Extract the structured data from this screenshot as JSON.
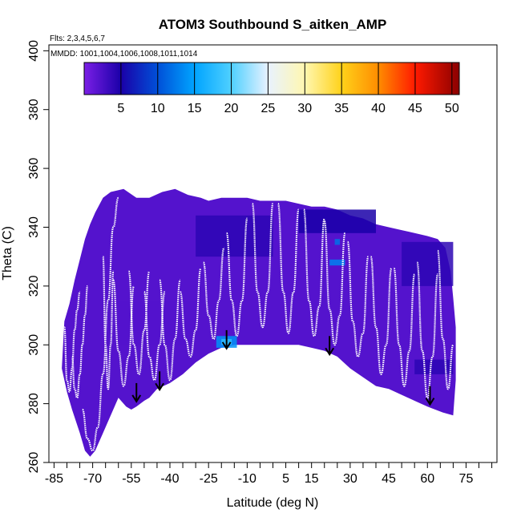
{
  "chart_data": {
    "type": "heatmap",
    "title": "ATOM3 Southbound S_aitken_AMP",
    "annotations": [
      "Flts: 2,3,4,5,6,7",
      "MMDD: 1001,1004,1006,1008,1011,1014"
    ],
    "xlabel": "Latitude (deg N)",
    "ylabel": "Theta (C)",
    "xlim": [
      -87,
      87
    ],
    "ylim": [
      260,
      402
    ],
    "x_ticks": [
      -85,
      -70,
      -55,
      -40,
      -25,
      -10,
      5,
      15,
      30,
      45,
      60,
      75
    ],
    "x_minor_step": 5,
    "y_ticks": [
      260,
      280,
      300,
      320,
      340,
      360,
      380,
      400
    ],
    "grid": false,
    "legend_position": "top (horizontal colorbar)",
    "colorbar": {
      "min": 0,
      "max": 51,
      "ticks": [
        5,
        10,
        15,
        20,
        25,
        30,
        35,
        40,
        45,
        50
      ],
      "stops": [
        {
          "v": 0,
          "color": "#7b1fe6"
        },
        {
          "v": 5,
          "color": "#1a00a8"
        },
        {
          "v": 10,
          "color": "#0050d8"
        },
        {
          "v": 15,
          "color": "#00a4ff"
        },
        {
          "v": 20,
          "color": "#4fd0ff"
        },
        {
          "v": 25,
          "color": "#e8f2ff"
        },
        {
          "v": 30,
          "color": "#fff7b0"
        },
        {
          "v": 35,
          "color": "#ffd21a"
        },
        {
          "v": 40,
          "color": "#ff8c00"
        },
        {
          "v": 45,
          "color": "#ff1a00"
        },
        {
          "v": 51,
          "color": "#8b0000"
        }
      ]
    },
    "domain_outline": [
      [
        -81,
        308
      ],
      [
        -79,
        314
      ],
      [
        -77,
        322
      ],
      [
        -75,
        329
      ],
      [
        -73,
        336
      ],
      [
        -71,
        341
      ],
      [
        -69,
        345
      ],
      [
        -66,
        350
      ],
      [
        -63,
        352
      ],
      [
        -58,
        353
      ],
      [
        -53,
        350
      ],
      [
        -48,
        350
      ],
      [
        -43,
        352
      ],
      [
        -38,
        353
      ],
      [
        -33,
        351
      ],
      [
        -28,
        350
      ],
      [
        -25,
        349
      ],
      [
        -20,
        350
      ],
      [
        -15,
        350
      ],
      [
        -10,
        350
      ],
      [
        -5,
        349
      ],
      [
        0,
        349
      ],
      [
        5,
        349
      ],
      [
        10,
        348
      ],
      [
        15,
        347
      ],
      [
        20,
        347
      ],
      [
        25,
        346
      ],
      [
        30,
        344
      ],
      [
        35,
        343
      ],
      [
        40,
        341
      ],
      [
        45,
        340
      ],
      [
        50,
        339
      ],
      [
        55,
        338
      ],
      [
        60,
        337
      ],
      [
        64,
        336
      ],
      [
        67,
        333
      ],
      [
        69,
        325
      ],
      [
        70,
        316
      ],
      [
        71,
        306
      ],
      [
        71,
        288
      ],
      [
        70,
        276
      ],
      [
        66,
        277
      ],
      [
        60,
        279
      ],
      [
        55,
        281
      ],
      [
        50,
        283
      ],
      [
        45,
        285
      ],
      [
        40,
        286
      ],
      [
        35,
        289
      ],
      [
        30,
        292
      ],
      [
        25,
        296
      ],
      [
        20,
        298
      ],
      [
        15,
        299
      ],
      [
        10,
        300
      ],
      [
        5,
        300
      ],
      [
        0,
        300
      ],
      [
        -5,
        300
      ],
      [
        -10,
        300
      ],
      [
        -15,
        300
      ],
      [
        -20,
        299
      ],
      [
        -25,
        297
      ],
      [
        -30,
        294
      ],
      [
        -35,
        290
      ],
      [
        -40,
        287
      ],
      [
        -45,
        285
      ],
      [
        -48,
        282
      ],
      [
        -50,
        281
      ],
      [
        -53,
        279
      ],
      [
        -55,
        278
      ],
      [
        -57,
        279
      ],
      [
        -60,
        282
      ],
      [
        -63,
        276
      ],
      [
        -66,
        270
      ],
      [
        -69,
        264
      ],
      [
        -71,
        262
      ],
      [
        -73,
        264
      ],
      [
        -75,
        270
      ],
      [
        -78,
        278
      ],
      [
        -80,
        284
      ],
      [
        -82,
        292
      ]
    ],
    "patches": [
      {
        "lat": [
          -22,
          -14
        ],
        "theta": [
          299,
          303
        ],
        "value": 14
      },
      {
        "lat": [
          -20,
          -16
        ],
        "theta": [
          300,
          302
        ],
        "value": 18
      },
      {
        "lat": [
          22,
          28
        ],
        "theta": [
          327,
          329
        ],
        "value": 13
      },
      {
        "lat": [
          24,
          26
        ],
        "theta": [
          334,
          336
        ],
        "value": 12
      },
      {
        "lat": [
          10,
          40
        ],
        "theta": [
          338,
          346
        ],
        "value": 5
      },
      {
        "lat": [
          -30,
          0
        ],
        "theta": [
          330,
          344
        ],
        "value": 4
      },
      {
        "lat": [
          50,
          70
        ],
        "theta": [
          320,
          335
        ],
        "value": 4
      },
      {
        "lat": [
          55,
          70
        ],
        "theta": [
          290,
          295
        ],
        "value": 4
      },
      {
        "lat": [
          -60,
          -30
        ],
        "theta": [
          300,
          315
        ],
        "value": 2
      }
    ],
    "tropopause_arrows": [
      {
        "lat": -53,
        "theta": 287
      },
      {
        "lat": -44,
        "theta": 291
      },
      {
        "lat": -18,
        "theta": 305
      },
      {
        "lat": 22,
        "theta": 303
      },
      {
        "lat": 61,
        "theta": 286
      }
    ],
    "flight_profiles": [
      {
        "lat": [
          -81,
          -80,
          -79,
          -78,
          -77,
          -76,
          -75
        ],
        "theta": [
          306,
          288,
          284,
          292,
          305,
          312,
          318
        ]
      },
      {
        "lat": [
          -78,
          -77,
          -76,
          -75,
          -74,
          -73,
          -72
        ],
        "theta": [
          296,
          285,
          282,
          290,
          300,
          310,
          320
        ]
      },
      {
        "lat": [
          -74,
          -72,
          -70,
          -68,
          -66,
          -64,
          -62,
          -60
        ],
        "theta": [
          278,
          268,
          264,
          272,
          290,
          315,
          340,
          350
        ]
      },
      {
        "lat": [
          -66,
          -65,
          -64,
          -63,
          -62
        ],
        "theta": [
          330,
          300,
          285,
          300,
          325
        ]
      },
      {
        "lat": [
          -62,
          -60,
          -58,
          -56,
          -54
        ],
        "theta": [
          322,
          298,
          286,
          296,
          320
        ]
      },
      {
        "lat": [
          -56,
          -54,
          -52,
          -50,
          -48
        ],
        "theta": [
          325,
          300,
          290,
          305,
          325
        ]
      },
      {
        "lat": [
          -50,
          -48,
          -46,
          -44,
          -42
        ],
        "theta": [
          318,
          296,
          288,
          300,
          318
        ]
      },
      {
        "lat": [
          -44,
          -42,
          -40,
          -38,
          -36
        ],
        "theta": [
          322,
          300,
          288,
          302,
          322
        ]
      },
      {
        "lat": [
          -36,
          -34,
          -32,
          -30,
          -28
        ],
        "theta": [
          318,
          302,
          296,
          305,
          326
        ]
      },
      {
        "lat": [
          -27,
          -25,
          -23,
          -21,
          -19
        ],
        "theta": [
          328,
          310,
          302,
          315,
          333
        ]
      },
      {
        "lat": [
          -18,
          -16,
          -14,
          -12,
          -10
        ],
        "theta": [
          338,
          315,
          303,
          315,
          343
        ]
      },
      {
        "lat": [
          -8,
          -6,
          -4,
          -2,
          0
        ],
        "theta": [
          348,
          318,
          306,
          318,
          348
        ]
      },
      {
        "lat": [
          2,
          4,
          6,
          8,
          10
        ],
        "theta": [
          348,
          318,
          304,
          318,
          346
        ]
      },
      {
        "lat": [
          12,
          14,
          16,
          18,
          20
        ],
        "theta": [
          346,
          315,
          303,
          313,
          343
        ]
      },
      {
        "lat": [
          20,
          22,
          24,
          26,
          28
        ],
        "theta": [
          342,
          312,
          300,
          310,
          338
        ]
      },
      {
        "lat": [
          29,
          31,
          33,
          35,
          37
        ],
        "theta": [
          335,
          308,
          296,
          304,
          330
        ]
      },
      {
        "lat": [
          38,
          40,
          42,
          44,
          46
        ],
        "theta": [
          330,
          306,
          290,
          300,
          326
        ]
      },
      {
        "lat": [
          47,
          49,
          51,
          53,
          55
        ],
        "theta": [
          326,
          300,
          286,
          298,
          324
        ]
      },
      {
        "lat": [
          56,
          58,
          60,
          62,
          64
        ],
        "theta": [
          328,
          298,
          282,
          296,
          324
        ]
      },
      {
        "lat": [
          64,
          66,
          68,
          70
        ],
        "theta": [
          332,
          302,
          285,
          300
        ]
      }
    ]
  }
}
